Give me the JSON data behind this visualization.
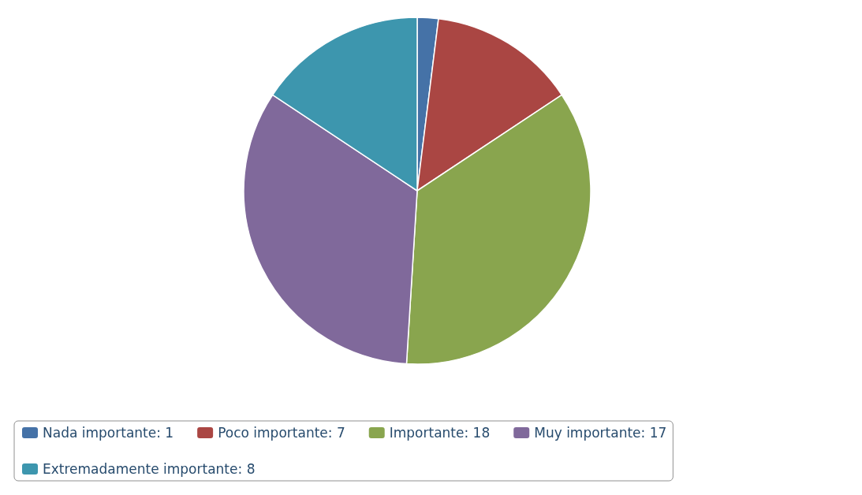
{
  "chart_data": {
    "type": "pie",
    "categories": [
      "Nada importante: 1",
      "Poco importante: 7",
      "Importante: 18",
      "Muy importante: 17",
      "Extremadamente importante: 8"
    ],
    "values": [
      1,
      7,
      18,
      17,
      8
    ],
    "colors": [
      "#4572a7",
      "#aa4643",
      "#89a54e",
      "#80699b",
      "#3d96ae"
    ],
    "legend": "bottom"
  }
}
